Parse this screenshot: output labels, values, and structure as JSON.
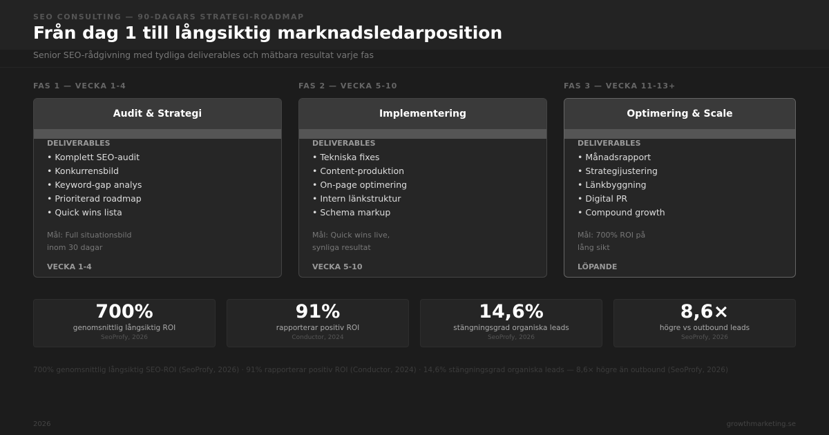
{
  "header": {
    "eyebrow": "SEO CONSULTING — 90-DAGARS STRATEGI-ROADMAP",
    "title": "Från dag 1 till långsiktig marknadsledarposition",
    "subtitle": "Senior SEO-rådgivning med tydliga deliverables och mätbara resultat varje fas"
  },
  "phases": [
    {
      "label": "FAS 1 — VECKA 1-4",
      "title": "Audit & Strategi",
      "deliverables_heading": "DELIVERABLES",
      "items": [
        "• Komplett SEO-audit",
        "• Konkurrensbild",
        "• Keyword-gap analys",
        "• Prioriterad roadmap",
        "• Quick wins lista"
      ],
      "goal": [
        "Mål: Full situationsbild",
        "inom 30 dagar"
      ],
      "timing": "VECKA 1-4"
    },
    {
      "label": "FAS 2 — VECKA 5-10",
      "title": "Implementering",
      "deliverables_heading": "DELIVERABLES",
      "items": [
        "• Tekniska fixes",
        "• Content-produktion",
        "• On-page optimering",
        "• Intern länkstruktur",
        "• Schema markup"
      ],
      "goal": [
        "Mål: Quick wins live,",
        "synliga resultat"
      ],
      "timing": "VECKA 5-10"
    },
    {
      "label": "FAS 3 — VECKA 11-13+",
      "title": "Optimering & Scale",
      "deliverables_heading": "DELIVERABLES",
      "items": [
        "• Månadsrapport",
        "• Strategijustering",
        "• Länkbyggning",
        "• Digital PR",
        "• Compound growth"
      ],
      "goal": [
        "Mål: 700% ROI på",
        "lång sikt"
      ],
      "timing": "LÖPANDE"
    }
  ],
  "stats": [
    {
      "value": "700%",
      "label": "genomsnittlig långsiktig ROI",
      "source": "SeoProfy, 2026"
    },
    {
      "value": "91%",
      "label": "rapporterar positiv ROI",
      "source": "Conductor, 2024"
    },
    {
      "value": "14,6%",
      "label": "stängningsgrad organiska leads",
      "source": "SeoProfy, 2026"
    },
    {
      "value": "8,6×",
      "label": "högre vs outbound leads",
      "source": "SeoProfy, 2026"
    }
  ],
  "footnote": "700% genomsnittlig långsiktig SEO-ROI (SeoProfy, 2026) · 91% rapporterar positiv ROI (Conductor, 2024) · 14,6% stängningsgrad organiska leads — 8,6× högre än outbound (SeoProfy, 2026)",
  "footer": {
    "year": "2026",
    "site": "growthmarketing.se"
  }
}
